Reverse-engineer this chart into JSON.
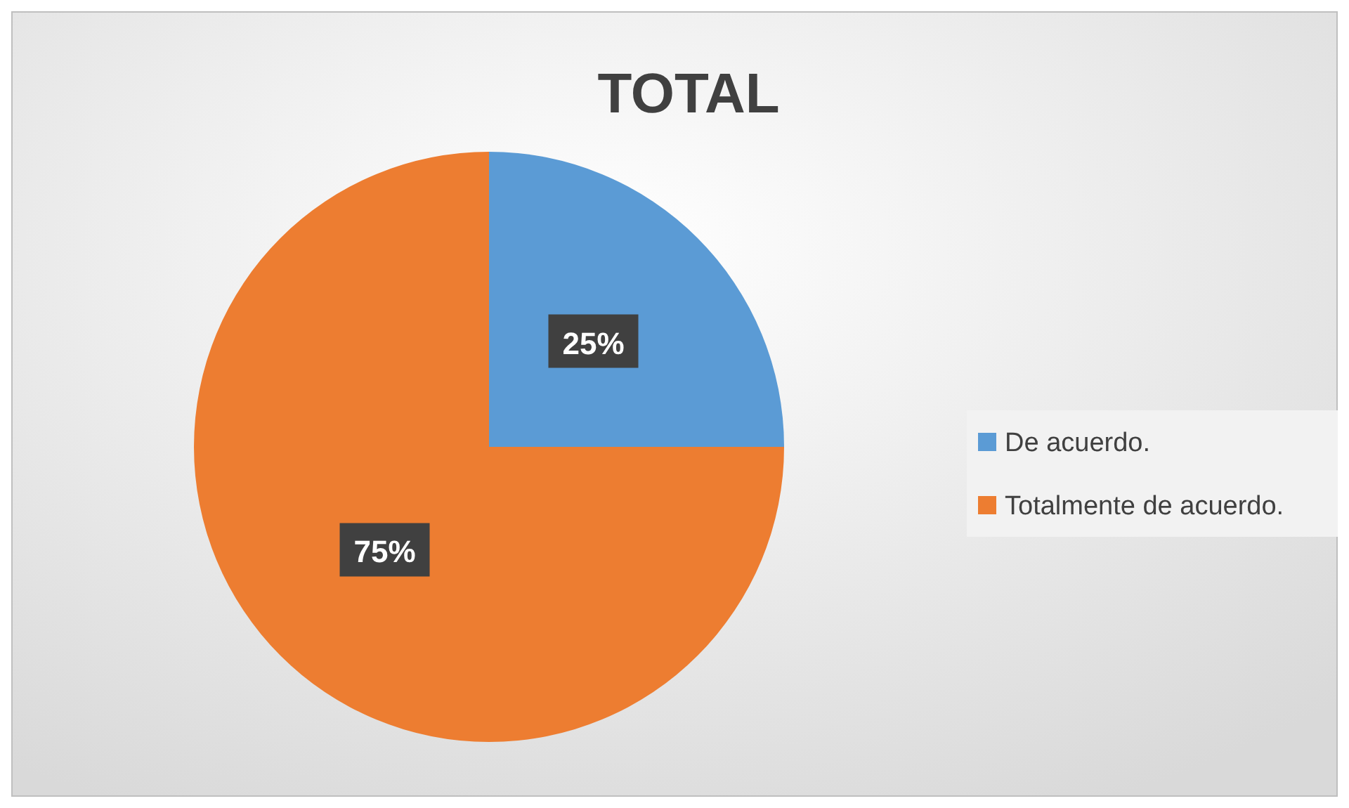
{
  "chart_data": {
    "type": "pie",
    "title": "TOTAL",
    "categories": [
      "De acuerdo.",
      "Totalmente de acuerdo."
    ],
    "values": [
      25,
      75
    ],
    "colors": [
      "#5b9bd5",
      "#ed7d31"
    ],
    "value_labels": [
      "25%",
      "75%"
    ],
    "legend": "right"
  }
}
